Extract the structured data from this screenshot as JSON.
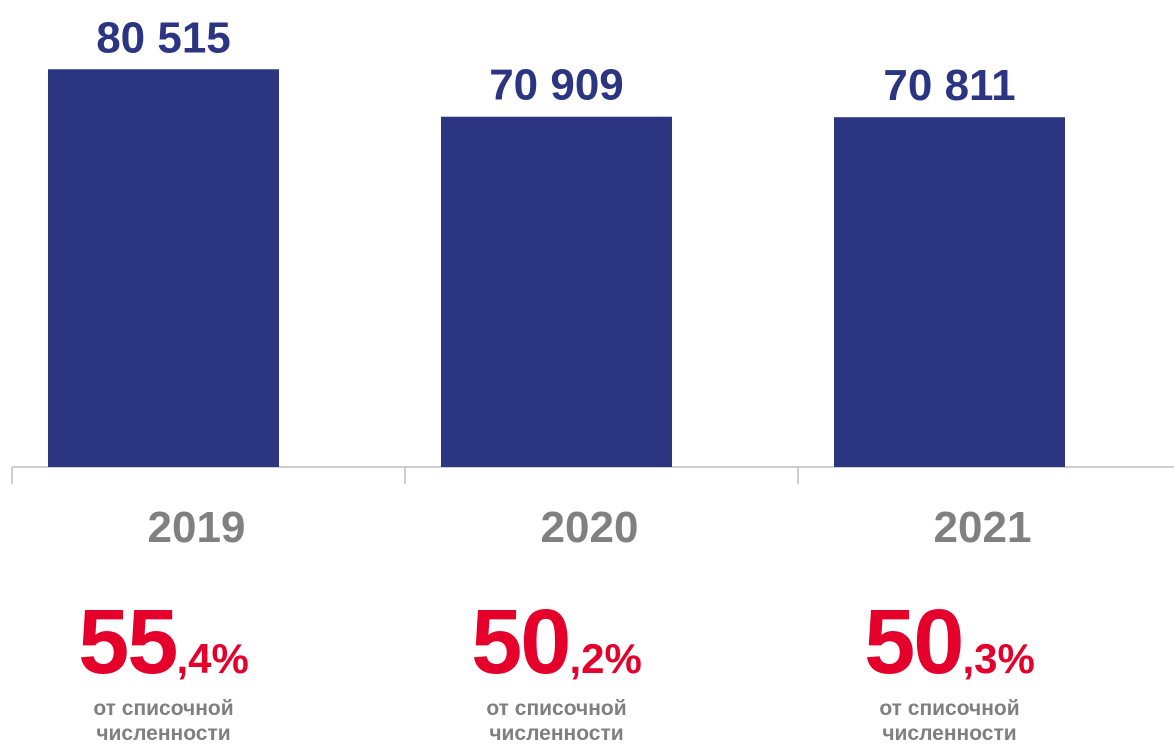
{
  "chart_data": {
    "type": "bar",
    "categories": [
      "2019",
      "2020",
      "2021"
    ],
    "values": [
      80515,
      70909,
      70811
    ],
    "value_labels": [
      "80 515",
      "70 909",
      "70 811"
    ],
    "xlabel": "",
    "ylabel": "",
    "grid": false,
    "colors": {
      "bar": "#2b3582",
      "value_label": "#2b3582",
      "year_label": "#808080",
      "percent": "#e4002b",
      "caption": "#7f7f7f",
      "axis": "#bfbfbf"
    }
  },
  "shares": [
    {
      "integer": "55",
      "decimal": ",4%",
      "caption_line1": "от списочной",
      "caption_line2": "численности"
    },
    {
      "integer": "50",
      "decimal": ",2%",
      "caption_line1": "от списочной",
      "caption_line2": "численности"
    },
    {
      "integer": "50",
      "decimal": ",3%",
      "caption_line1": "от списочной",
      "caption_line2": "численности"
    }
  ]
}
